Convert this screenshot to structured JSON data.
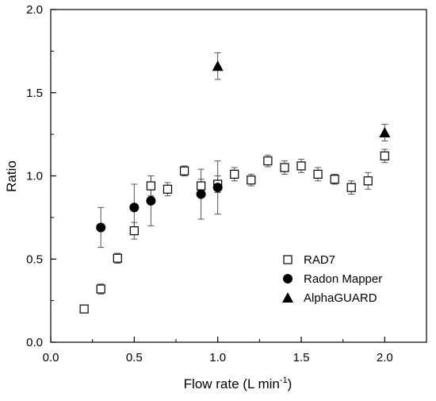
{
  "chart_data": {
    "type": "scatter",
    "xlabel": "Flow rate (L min",
    "xlabel_superscript": "-1",
    "xlabel_suffix": ")",
    "ylabel": "Ratio",
    "xlim": [
      0.0,
      2.25
    ],
    "ylim": [
      0.0,
      2.0
    ],
    "xticks": [
      "0.0",
      "0.5",
      "1.0",
      "1.5",
      "2.0"
    ],
    "yticks": [
      "0.0",
      "0.5",
      "1.0",
      "1.5",
      "2.0"
    ],
    "grid": false,
    "legend_position": "bottom-right",
    "series": [
      {
        "name": "RAD7",
        "marker": "open-square",
        "color": "#000000",
        "points": [
          {
            "x": 0.2,
            "y": 0.2,
            "err": 0.02
          },
          {
            "x": 0.3,
            "y": 0.32,
            "err": 0.03
          },
          {
            "x": 0.4,
            "y": 0.505,
            "err": 0.03
          },
          {
            "x": 0.5,
            "y": 0.67,
            "err": 0.05
          },
          {
            "x": 0.6,
            "y": 0.94,
            "err": 0.06
          },
          {
            "x": 0.7,
            "y": 0.92,
            "err": 0.04
          },
          {
            "x": 0.8,
            "y": 1.03,
            "err": 0.03
          },
          {
            "x": 0.9,
            "y": 0.94,
            "err": 0.04
          },
          {
            "x": 1.0,
            "y": 0.95,
            "err": 0.05
          },
          {
            "x": 1.1,
            "y": 1.01,
            "err": 0.04
          },
          {
            "x": 1.2,
            "y": 0.975,
            "err": 0.035
          },
          {
            "x": 1.3,
            "y": 1.09,
            "err": 0.035
          },
          {
            "x": 1.4,
            "y": 1.05,
            "err": 0.04
          },
          {
            "x": 1.5,
            "y": 1.06,
            "err": 0.04
          },
          {
            "x": 1.6,
            "y": 1.01,
            "err": 0.04
          },
          {
            "x": 1.7,
            "y": 0.98,
            "err": 0.03
          },
          {
            "x": 1.8,
            "y": 0.93,
            "err": 0.04
          },
          {
            "x": 1.9,
            "y": 0.97,
            "err": 0.05
          },
          {
            "x": 2.0,
            "y": 1.12,
            "err": 0.04
          }
        ]
      },
      {
        "name": "Radon Mapper",
        "marker": "filled-circle",
        "color": "#000000",
        "points": [
          {
            "x": 0.3,
            "y": 0.69,
            "err": 0.12
          },
          {
            "x": 0.5,
            "y": 0.81,
            "err": 0.14
          },
          {
            "x": 0.6,
            "y": 0.85,
            "err": 0.15
          },
          {
            "x": 0.9,
            "y": 0.89,
            "err": 0.15
          },
          {
            "x": 1.0,
            "y": 0.93,
            "err": 0.16
          }
        ]
      },
      {
        "name": "AlphaGUARD",
        "marker": "filled-triangle",
        "color": "#000000",
        "points": [
          {
            "x": 1.0,
            "y": 1.66,
            "err": 0.08
          },
          {
            "x": 2.0,
            "y": 1.26,
            "err": 0.05
          }
        ]
      }
    ]
  }
}
